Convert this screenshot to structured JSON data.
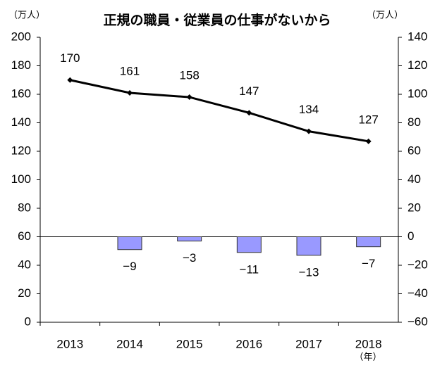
{
  "chart_data": {
    "type": "bar-line",
    "title": "正規の職員・従業員の仕事がないから",
    "y_unit": "（万人）",
    "y2_unit": "（万人）",
    "x_unit": "（年）",
    "categories": [
      "2013",
      "2014",
      "2015",
      "2016",
      "2017",
      "2018"
    ],
    "series": [
      {
        "type": "line",
        "color": "#000000",
        "values": [
          170,
          161,
          158,
          147,
          134,
          127
        ]
      },
      {
        "type": "bar",
        "axis": "y2",
        "color": "#9999ff",
        "values": [
          null,
          -9,
          -3,
          -11,
          -13,
          -7
        ],
        "value_labels": [
          null,
          "−9",
          "−3",
          "−11",
          "−13",
          "−7"
        ]
      }
    ],
    "ylim": [
      0,
      200
    ],
    "yticks": [
      0,
      20,
      40,
      60,
      80,
      100,
      120,
      140,
      160,
      180,
      200
    ],
    "y2lim": [
      -60,
      140
    ],
    "y2ticks": [
      {
        "value": -60,
        "label": "−60"
      },
      {
        "value": -40,
        "label": "−40"
      },
      {
        "value": -20,
        "label": "−20"
      },
      0,
      20,
      40,
      60,
      80,
      100,
      120,
      140
    ]
  }
}
